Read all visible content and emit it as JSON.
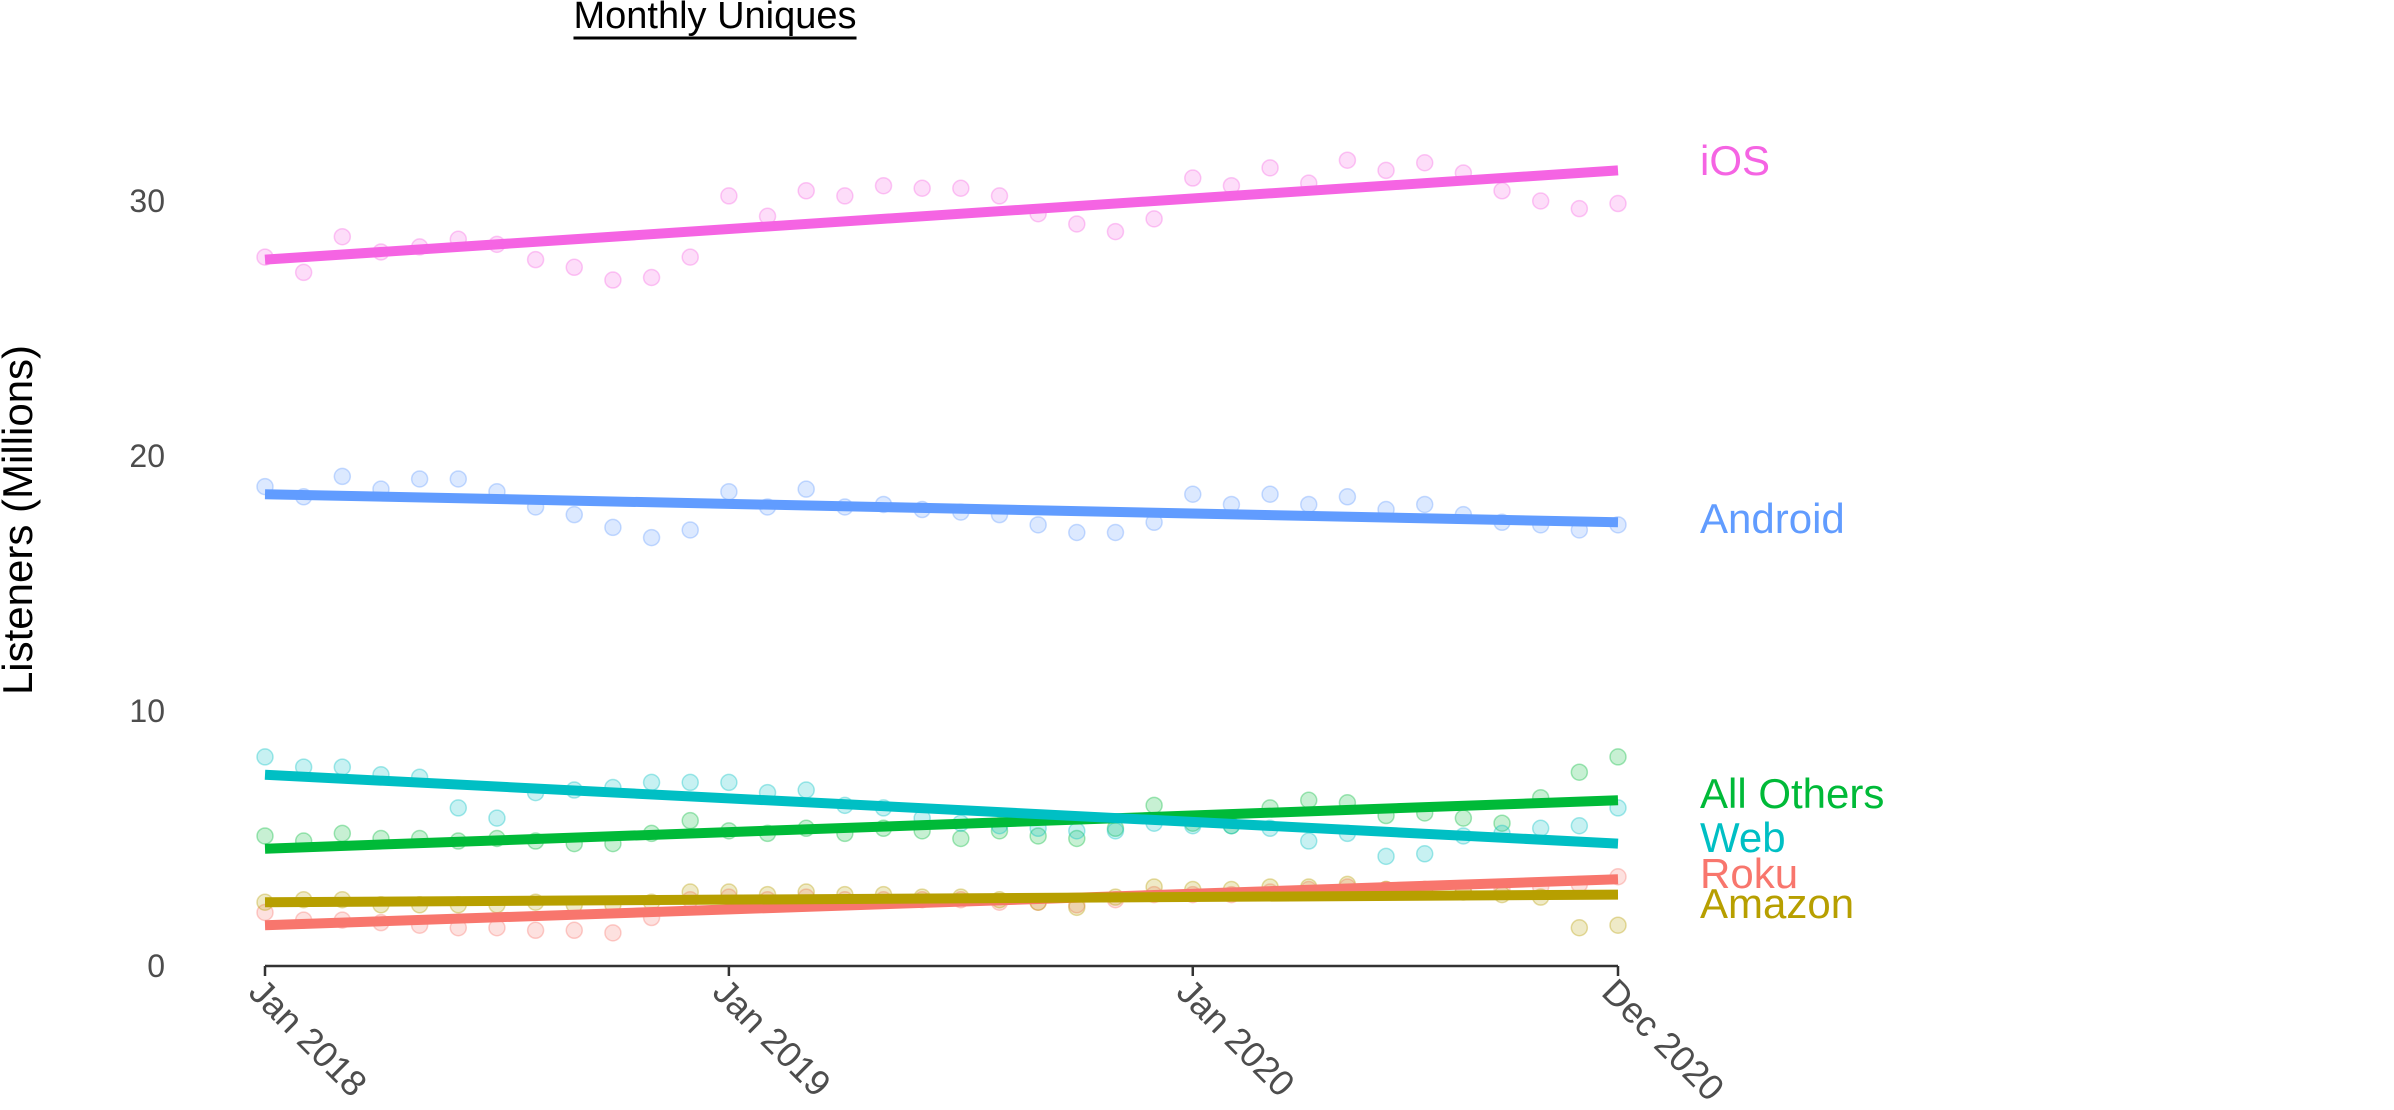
{
  "chart_data": {
    "type": "scatter",
    "title": "Monthly Uniques",
    "ylabel": "Listeners (Millions)",
    "xlabel": "",
    "ylim": [
      0,
      35
    ],
    "xlim": [
      "2018-01",
      "2020-12"
    ],
    "y_ticks": [
      0,
      10,
      20,
      30
    ],
    "x_ticks": [
      {
        "label": "Jan 2018",
        "month": "2018-01"
      },
      {
        "label": "Jan 2019",
        "month": "2019-01"
      },
      {
        "label": "Jan 2020",
        "month": "2020-01"
      },
      {
        "label": "Dec 2020",
        "month": "2020-12"
      }
    ],
    "grid": false,
    "legend": "direct labels at right end of trend lines",
    "x": [
      "2018-01",
      "2018-02",
      "2018-03",
      "2018-04",
      "2018-05",
      "2018-06",
      "2018-07",
      "2018-08",
      "2018-09",
      "2018-10",
      "2018-11",
      "2018-12",
      "2019-01",
      "2019-02",
      "2019-03",
      "2019-04",
      "2019-05",
      "2019-06",
      "2019-07",
      "2019-08",
      "2019-09",
      "2019-10",
      "2019-11",
      "2019-12",
      "2020-01",
      "2020-02",
      "2020-03",
      "2020-04",
      "2020-05",
      "2020-06",
      "2020-07",
      "2020-08",
      "2020-09",
      "2020-10",
      "2020-11",
      "2020-12"
    ],
    "series": [
      {
        "name": "iOS",
        "color": "#F564E3",
        "values": [
          27.8,
          27.2,
          28.6,
          28.0,
          28.2,
          28.5,
          28.3,
          27.7,
          27.4,
          26.9,
          27.0,
          27.8,
          30.2,
          29.4,
          30.4,
          30.2,
          30.6,
          30.5,
          30.5,
          30.2,
          29.5,
          29.1,
          28.8,
          29.3,
          30.9,
          30.6,
          31.3,
          30.7,
          31.6,
          31.2,
          31.5,
          31.1,
          30.4,
          30.0,
          29.7,
          29.9
        ],
        "trend": [
          27.7,
          31.2
        ]
      },
      {
        "name": "Android",
        "color": "#619CFF",
        "values": [
          18.8,
          18.4,
          19.2,
          18.7,
          19.1,
          19.1,
          18.6,
          18.0,
          17.7,
          17.2,
          16.8,
          17.1,
          18.6,
          18.0,
          18.7,
          18.0,
          18.1,
          17.9,
          17.8,
          17.7,
          17.3,
          17.0,
          17.0,
          17.4,
          18.5,
          18.1,
          18.5,
          18.1,
          18.4,
          17.9,
          18.1,
          17.7,
          17.4,
          17.3,
          17.1,
          17.3
        ],
        "trend": [
          18.5,
          17.4
        ]
      },
      {
        "name": "All Others",
        "color": "#00BA38",
        "values": [
          5.1,
          4.9,
          5.2,
          5.0,
          5.0,
          4.9,
          5.0,
          4.9,
          4.8,
          4.8,
          5.2,
          5.7,
          5.3,
          5.2,
          5.4,
          5.2,
          5.4,
          5.3,
          5.0,
          5.3,
          5.1,
          5.0,
          5.4,
          6.3,
          5.6,
          5.5,
          6.2,
          6.5,
          6.4,
          5.9,
          6.0,
          5.8,
          5.6,
          6.6,
          7.6,
          8.2
        ],
        "trend": [
          4.6,
          6.5
        ]
      },
      {
        "name": "Web",
        "color": "#00BFC4",
        "values": [
          8.2,
          7.8,
          7.8,
          7.5,
          7.4,
          6.2,
          5.8,
          6.8,
          6.9,
          7.0,
          7.2,
          7.2,
          7.2,
          6.8,
          6.9,
          6.3,
          6.2,
          5.8,
          5.6,
          5.5,
          5.4,
          5.3,
          5.3,
          5.6,
          5.5,
          5.5,
          5.4,
          4.9,
          5.2,
          4.3,
          4.4,
          5.1,
          5.2,
          5.4,
          5.5,
          6.2
        ],
        "trend": [
          7.5,
          4.8
        ]
      },
      {
        "name": "Roku",
        "color": "#F8766D",
        "values": [
          2.1,
          1.8,
          1.8,
          1.7,
          1.6,
          1.5,
          1.5,
          1.4,
          1.4,
          1.3,
          1.9,
          2.6,
          2.7,
          2.6,
          2.7,
          2.6,
          2.6,
          2.6,
          2.6,
          2.5,
          2.5,
          2.4,
          2.6,
          2.8,
          2.8,
          2.8,
          2.9,
          3.0,
          3.1,
          3.0,
          3.0,
          3.0,
          3.0,
          3.1,
          3.2,
          3.5
        ],
        "trend": [
          1.6,
          3.4
        ]
      },
      {
        "name": "Amazon",
        "color": "#B79F00",
        "values": [
          2.5,
          2.6,
          2.6,
          2.4,
          2.4,
          2.4,
          2.4,
          2.5,
          2.4,
          2.4,
          2.5,
          2.9,
          2.9,
          2.8,
          2.9,
          2.8,
          2.8,
          2.7,
          2.7,
          2.6,
          2.5,
          2.3,
          2.7,
          3.1,
          3.0,
          3.0,
          3.1,
          3.1,
          3.2,
          3.0,
          3.0,
          2.9,
          2.8,
          2.7,
          1.5,
          1.6
        ],
        "trend": [
          2.5,
          2.8
        ]
      }
    ]
  }
}
